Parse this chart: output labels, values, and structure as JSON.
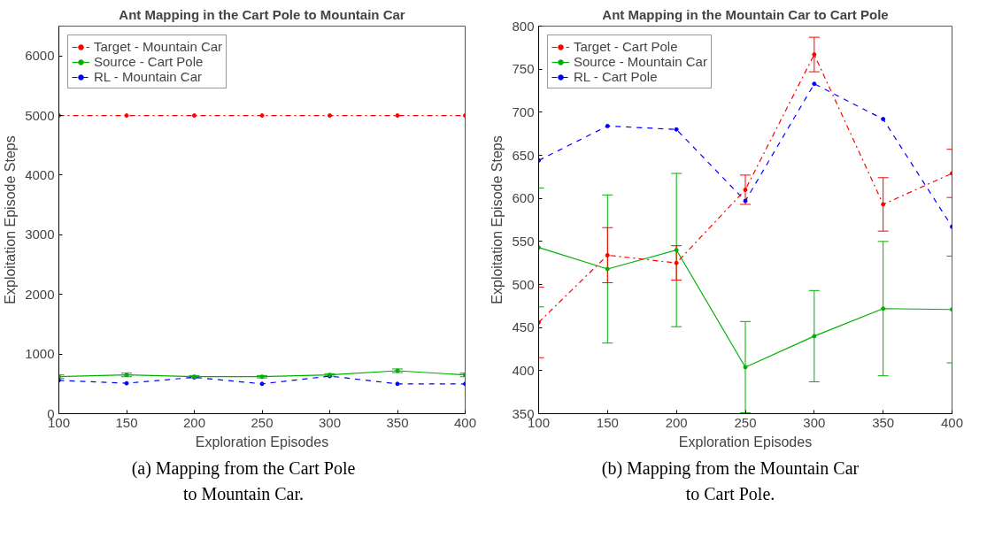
{
  "chart_data": [
    {
      "type": "line",
      "title": "Ant Mapping in the Cart Pole to Mountain Car",
      "xlabel": "Exploration Episodes",
      "ylabel": "Exploitation Episode Steps",
      "x": [
        100,
        150,
        200,
        250,
        300,
        350,
        400
      ],
      "xlim": [
        100,
        400
      ],
      "xticks": [
        100,
        150,
        200,
        250,
        300,
        350,
        400
      ],
      "ylim": [
        0,
        6500
      ],
      "yticks": [
        0,
        1000,
        2000,
        3000,
        4000,
        5000,
        6000
      ],
      "grid": false,
      "legend": "top left",
      "marker": "circle",
      "annotations": [
        "(a) Mapping from the Cart Pole\nto Mountain Car."
      ],
      "series": [
        {
          "name": "Target - Mountain Car",
          "color": "#ff0000",
          "line_style": "dashdot",
          "values": [
            5000,
            5000,
            5000,
            5000,
            5000,
            5000,
            5000
          ]
        },
        {
          "name": "Source - Cart Pole",
          "color": "#00b000",
          "line_style": "solid",
          "values": [
            620,
            650,
            620,
            620,
            650,
            720,
            650
          ],
          "errors": [
            30,
            30,
            20,
            20,
            20,
            30,
            30
          ]
        },
        {
          "name": "RL - Mountain Car",
          "color": "#0000ff",
          "line_style": "dashed",
          "values": [
            560,
            510,
            610,
            500,
            630,
            500,
            500
          ]
        }
      ]
    },
    {
      "type": "line",
      "title": "Ant Mapping in the Mountain Car to Cart Pole",
      "xlabel": "Exploration Episodes",
      "ylabel": "Exploitation Episode Steps",
      "x": [
        100,
        150,
        200,
        250,
        300,
        350,
        400
      ],
      "xlim": [
        100,
        400
      ],
      "xticks": [
        100,
        150,
        200,
        250,
        300,
        350,
        400
      ],
      "ylim": [
        350,
        800
      ],
      "yticks": [
        350,
        400,
        450,
        500,
        550,
        600,
        650,
        700,
        750,
        800
      ],
      "grid": false,
      "legend": "top left",
      "marker": "circle",
      "annotations": [
        "(b) Mapping from the Mountain Car\nto Cart Pole."
      ],
      "series": [
        {
          "name": "Target - Cart Pole",
          "color": "#ff0000",
          "line_style": "dashdot",
          "values": [
            456,
            534,
            525,
            610,
            767,
            593,
            629
          ],
          "errors": [
            41,
            32,
            20,
            17,
            20,
            31,
            28
          ]
        },
        {
          "name": "Source - Mountain Car",
          "color": "#00b000",
          "line_style": "solid",
          "values": [
            543,
            518,
            540,
            404,
            440,
            472,
            471
          ],
          "errors": [
            69,
            86,
            89,
            53,
            53,
            78,
            62
          ]
        },
        {
          "name": "RL - Cart Pole",
          "color": "#0000ff",
          "line_style": "dashed",
          "values": [
            644,
            684,
            680,
            597,
            733,
            692,
            567
          ]
        }
      ]
    }
  ]
}
